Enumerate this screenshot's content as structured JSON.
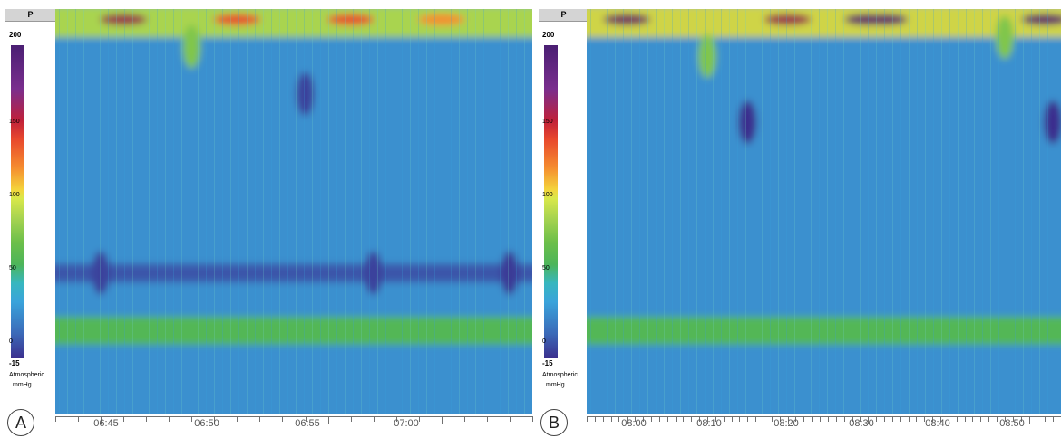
{
  "colorbar": {
    "header": "P",
    "max_label": "200",
    "min_label": "-15",
    "ticks": [
      "150",
      "100",
      "50",
      "0"
    ],
    "unit_line1": "Atmospheric",
    "unit_line2": "mmHg",
    "colors": [
      "#4a1f73",
      "#c0213a",
      "#f58c2f",
      "#f4d33b",
      "#a9d450",
      "#4db55a",
      "#37b7bf",
      "#3b6ab8",
      "#3b2f8e"
    ]
  },
  "panels": [
    {
      "letter": "A",
      "x_ticks": [
        "06:45",
        "06:50",
        "06:55",
        "07:00"
      ]
    },
    {
      "letter": "B",
      "x_ticks": [
        "08:00",
        "08:10",
        "08:20",
        "08:30",
        "08:40",
        "08:50"
      ]
    }
  ],
  "chart_data": [
    {
      "type": "heatmap",
      "title": "",
      "xlabel": "",
      "ylabel": "",
      "y_axis": {
        "ticks": [
          0,
          50,
          100,
          150,
          200
        ],
        "range": [
          -15,
          200
        ],
        "unit": "Atmospheric mmHg"
      },
      "x_ticks": [
        "06:45",
        "06:50",
        "06:55",
        "07:00"
      ],
      "x_range": [
        "06:43",
        "07:04"
      ],
      "background_value": 10,
      "features": [
        {
          "kind": "band",
          "y_range": [
            185,
            200
          ],
          "x_range": [
            "06:43",
            "07:04"
          ],
          "value": 90,
          "peaks": [
            {
              "t": "06:46",
              "value": 180
            },
            {
              "t": "06:51",
              "value": 150
            },
            {
              "t": "06:56",
              "value": 150
            },
            {
              "t": "07:00",
              "value": 130
            }
          ]
        },
        {
          "kind": "band",
          "y_range": [
            22,
            35
          ],
          "x_range": [
            "06:43",
            "07:04"
          ],
          "value": 35
        },
        {
          "kind": "band",
          "y_range": [
            55,
            63
          ],
          "x_range": [
            "06:43",
            "07:04"
          ],
          "value": -5
        },
        {
          "kind": "spot",
          "t": "06:49",
          "y": 180,
          "value": 70
        },
        {
          "kind": "spot",
          "t": "06:54",
          "y": 155,
          "value": -10
        },
        {
          "kind": "spot",
          "t": "06:45",
          "y": 60,
          "value": -10
        },
        {
          "kind": "spot",
          "t": "06:57",
          "y": 60,
          "value": -10
        },
        {
          "kind": "spot",
          "t": "07:03",
          "y": 60,
          "value": -12
        }
      ]
    },
    {
      "type": "heatmap",
      "title": "",
      "xlabel": "",
      "ylabel": "",
      "y_axis": {
        "ticks": [
          0,
          50,
          100,
          150,
          200
        ],
        "range": [
          -15,
          200
        ],
        "unit": "Atmospheric mmHg"
      },
      "x_ticks": [
        "08:00",
        "08:10",
        "08:20",
        "08:30",
        "08:40",
        "08:50"
      ],
      "x_range": [
        "07:55",
        "08:54"
      ],
      "background_value": 10,
      "features": [
        {
          "kind": "band",
          "y_range": [
            185,
            200
          ],
          "x_range": [
            "07:55",
            "08:54"
          ],
          "value": 100,
          "peaks": [
            {
              "t": "08:00",
              "value": 190
            },
            {
              "t": "08:20",
              "value": 180
            },
            {
              "t": "08:30",
              "value": 195
            },
            {
              "t": "08:32",
              "value": 195
            },
            {
              "t": "08:52",
              "value": 195
            }
          ]
        },
        {
          "kind": "band",
          "y_range": [
            22,
            35
          ],
          "x_range": [
            "07:55",
            "08:54"
          ],
          "value": 35
        },
        {
          "kind": "spot",
          "t": "08:15",
          "y": 140,
          "value": -15
        },
        {
          "kind": "spot",
          "t": "08:53",
          "y": 140,
          "value": -15
        },
        {
          "kind": "spot",
          "t": "08:10",
          "y": 175,
          "value": 70
        },
        {
          "kind": "spot",
          "t": "08:47",
          "y": 185,
          "value": 70
        }
      ]
    }
  ]
}
